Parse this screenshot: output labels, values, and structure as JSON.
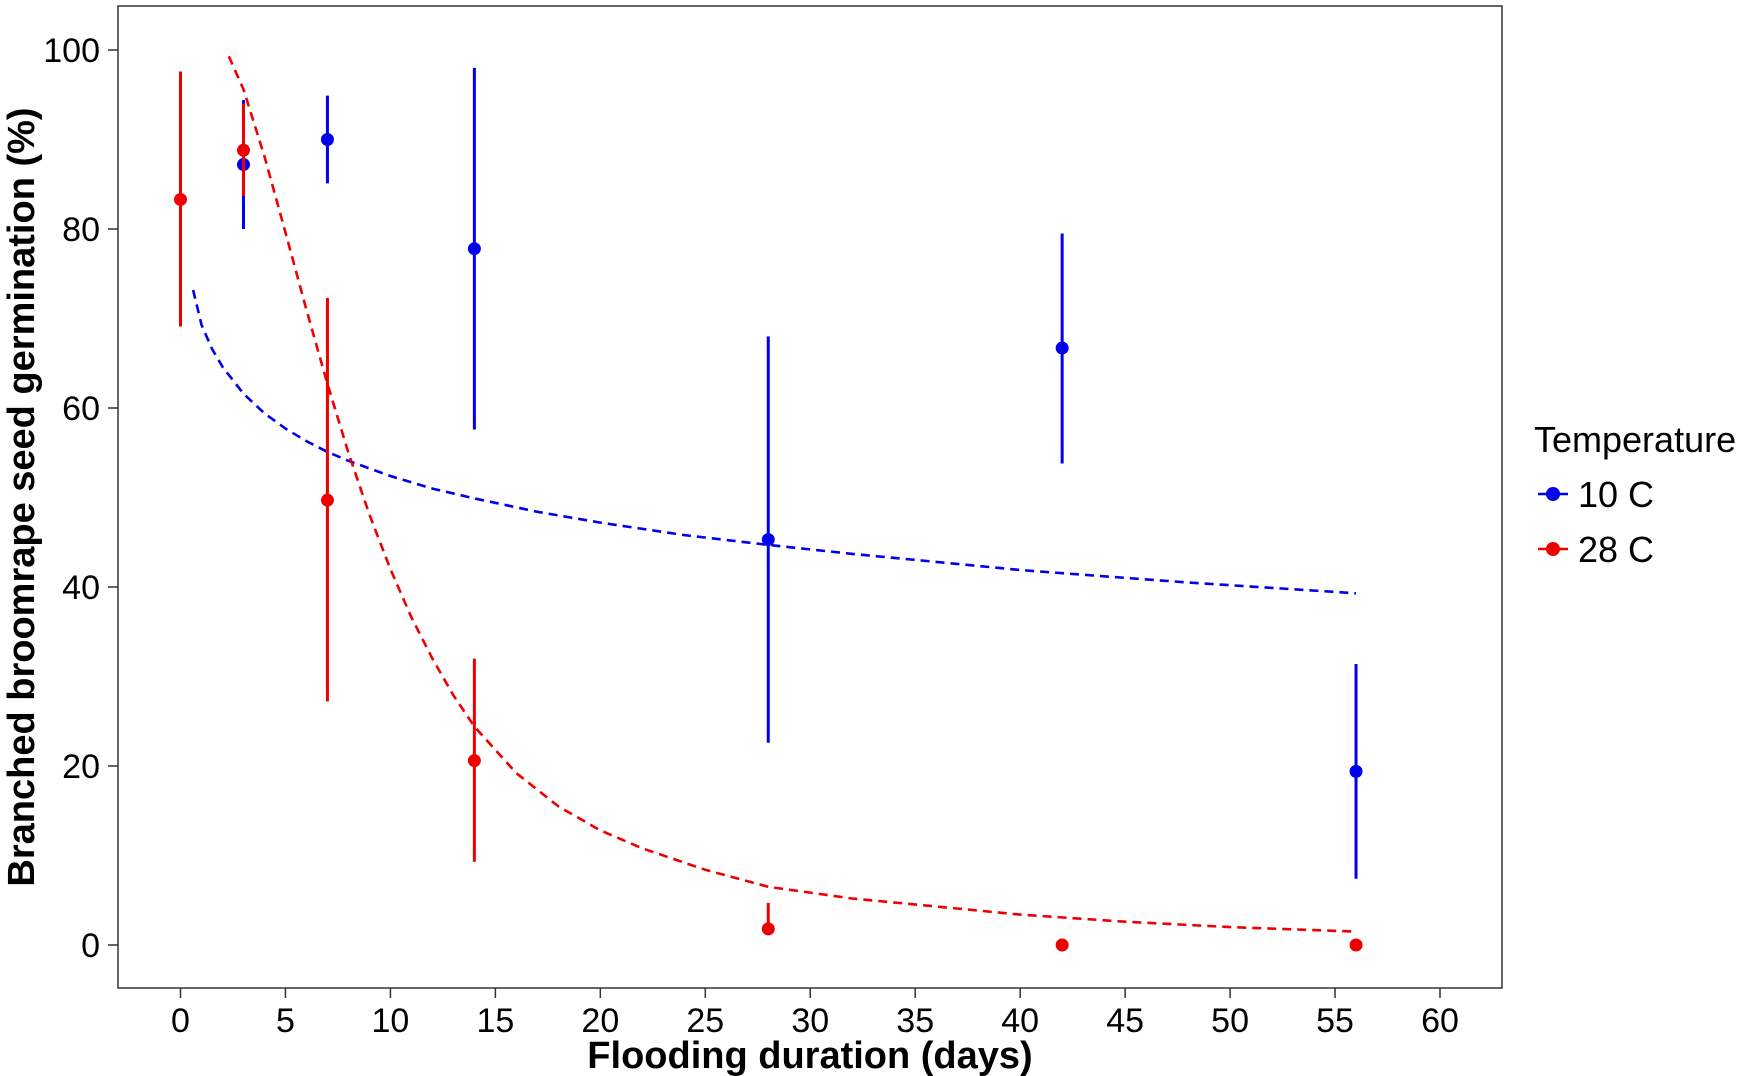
{
  "chart_data": {
    "type": "scatter",
    "title": "",
    "xlabel": "Flooding duration (days)",
    "ylabel": "Branched broomrape seed germination (%)",
    "xlim": [
      -3,
      63
    ],
    "ylim": [
      -5,
      105
    ],
    "x_ticks": [
      0,
      5,
      10,
      15,
      20,
      25,
      30,
      35,
      40,
      45,
      50,
      55,
      60
    ],
    "y_ticks": [
      0,
      20,
      40,
      60,
      80,
      100
    ],
    "grid": false,
    "legend": {
      "title": "Temperature",
      "position": "right"
    },
    "series": [
      {
        "name": "10 C",
        "color": "#0000ee",
        "points": [
          {
            "x": 3,
            "y": 87.2,
            "low": 80,
            "high": 94.4
          },
          {
            "x": 7,
            "y": 90,
            "low": 85.1,
            "high": 94.9
          },
          {
            "x": 14,
            "y": 77.8,
            "low": 57.6,
            "high": 98
          },
          {
            "x": 28,
            "y": 45.3,
            "low": 22.6,
            "high": 68
          },
          {
            "x": 42,
            "y": 66.7,
            "low": 53.8,
            "high": 79.5
          },
          {
            "x": 56,
            "y": 19.4,
            "low": 7.4,
            "high": 31.4
          }
        ],
        "fit": {
          "style": "dashed",
          "x": [
            0.6,
            1,
            1.5,
            2,
            3,
            4,
            5,
            6,
            7,
            8,
            10,
            12,
            14,
            17,
            20,
            24,
            28,
            32,
            36,
            40,
            44,
            48,
            52,
            56
          ],
          "y": [
            73.2,
            69.3,
            66.6,
            64.6,
            61.6,
            59.4,
            57.7,
            56.3,
            55.1,
            54.1,
            52.4,
            51.0,
            49.9,
            48.4,
            47.2,
            45.8,
            44.7,
            43.7,
            42.8,
            41.9,
            41.2,
            40.5,
            39.9,
            39.3
          ]
        }
      },
      {
        "name": "28 C",
        "color": "#ee0000",
        "points": [
          {
            "x": 0,
            "y": 83.3,
            "low": 69.1,
            "high": 97.6
          },
          {
            "x": 3,
            "y": 88.8,
            "low": 83.7,
            "high": 94
          },
          {
            "x": 7,
            "y": 49.7,
            "low": 27.2,
            "high": 72.3
          },
          {
            "x": 14,
            "y": 20.6,
            "low": 9.3,
            "high": 32
          },
          {
            "x": 28,
            "y": 1.8,
            "low": 1.8,
            "high": 4.7
          },
          {
            "x": 42,
            "y": 0,
            "low": 0,
            "high": 0
          },
          {
            "x": 56,
            "y": 0,
            "low": 0,
            "high": 0
          }
        ],
        "fit": {
          "style": "dashed",
          "x": [
            2.3,
            3,
            4,
            5,
            6,
            7,
            8,
            9,
            10,
            11,
            12,
            13,
            14,
            16,
            18,
            20,
            22,
            25,
            28,
            32,
            36,
            40,
            45,
            50,
            56
          ],
          "y": [
            99.3,
            95.6,
            88.1,
            79.6,
            71.0,
            62.7,
            55.0,
            48.1,
            42.0,
            36.6,
            32.0,
            27.9,
            24.4,
            19.2,
            15.5,
            12.8,
            10.8,
            8.4,
            6.5,
            5.2,
            4.3,
            3.4,
            2.6,
            2.0,
            1.5
          ]
        }
      }
    ]
  }
}
